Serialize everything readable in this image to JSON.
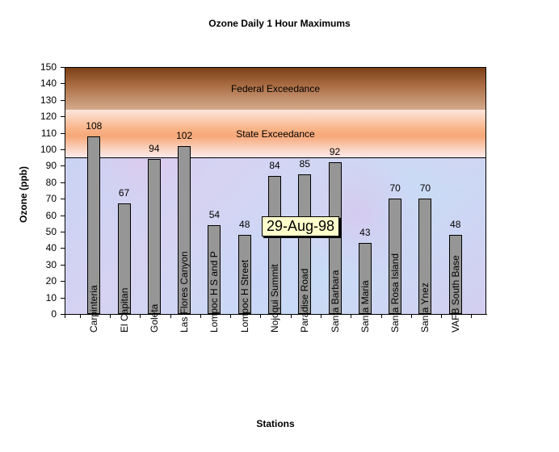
{
  "chart_data": {
    "type": "bar",
    "title": "Ozone Daily 1 Hour Maximums",
    "xlabel": "Stations",
    "ylabel": "Ozone (ppb)",
    "ylim": [
      0,
      150
    ],
    "yticks": [
      0,
      10,
      20,
      30,
      40,
      50,
      60,
      70,
      80,
      90,
      100,
      110,
      120,
      130,
      140,
      150
    ],
    "grid": false,
    "legend": null,
    "categories": [
      "Carpinteria",
      "El Capitan",
      "Goleta",
      "Las Flores Canyon",
      "Lompoc H S and P",
      "Lompoc H Street",
      "Nojoqui Summit",
      "Paradise Road",
      "Santa Barbara",
      "Santa Maria",
      "Santa Rosa Island",
      "Santa Ynez",
      "VAFB South Base"
    ],
    "values": [
      108,
      67,
      94,
      102,
      54,
      48,
      84,
      85,
      92,
      43,
      70,
      70,
      48
    ],
    "bar_color": "#969696",
    "bands": [
      {
        "label": "Federal Exceedance",
        "from": 124,
        "to": 150,
        "color": "#a86a40"
      },
      {
        "label": "State Exceedance",
        "from": 95,
        "to": 124,
        "color": "#f6a878"
      }
    ],
    "annotations": [
      {
        "text": "29-Aug-98",
        "type": "tooltip"
      }
    ]
  },
  "tooltip": {
    "text": "29-Aug-98"
  }
}
